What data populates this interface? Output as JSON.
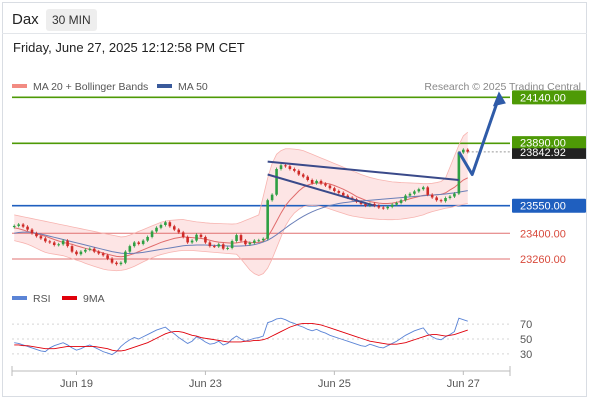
{
  "header": {
    "symbol": "Dax",
    "timeframe": "30 MIN",
    "timestamp": "Friday, June 27, 2025 12:12:58 PM CET"
  },
  "legend": [
    {
      "label": "MA 20 + Bollinger Bands",
      "color": "#f28b82"
    },
    {
      "label": "MA 50",
      "color": "#3a5a9b"
    }
  ],
  "credit": "Research © 2025 Trading Central",
  "rsi_legend": [
    {
      "label": "RSI",
      "color": "#5b84d6"
    },
    {
      "label": "9MA",
      "color": "#e0000b"
    }
  ],
  "colors": {
    "resistance": "#4e9a06",
    "pivot": "#1f5fbf",
    "support": "#e07070",
    "up_candle": "#2ea043",
    "down_candle": "#cf2a27",
    "band_fill": "#fde2e2",
    "channel": "#3a4a8a",
    "arrow": "#2f5ba8"
  },
  "chart_data": [
    {
      "type": "candlestick",
      "title": "Dax",
      "timeframe": "30 MIN",
      "x_ticks": [
        "Jun 19",
        "Jun 23",
        "Jun 25",
        "Jun 27"
      ],
      "ylim": [
        23200,
        24180
      ],
      "levels": [
        {
          "label": "24140.00",
          "value": 24140,
          "kind": "resistance"
        },
        {
          "label": "23890.00",
          "value": 23890,
          "kind": "resistance"
        },
        {
          "label": "23550.00",
          "value": 23550,
          "kind": "pivot"
        },
        {
          "label": "23400.00",
          "value": 23400,
          "kind": "support"
        },
        {
          "label": "23260.00",
          "value": 23260,
          "kind": "support"
        }
      ],
      "last_price_label": "23842.92",
      "closes": [
        23440,
        23448,
        23436,
        23420,
        23400,
        23384,
        23372,
        23356,
        23350,
        23336,
        23340,
        23360,
        23330,
        23300,
        23286,
        23300,
        23310,
        23316,
        23300,
        23290,
        23280,
        23262,
        23240,
        23232,
        23240,
        23300,
        23330,
        23350,
        23342,
        23360,
        23380,
        23410,
        23430,
        23445,
        23460,
        23438,
        23420,
        23405,
        23380,
        23350,
        23360,
        23392,
        23380,
        23350,
        23330,
        23328,
        23340,
        23316,
        23320,
        23358,
        23390,
        23360,
        23340,
        23348,
        23360,
        23362,
        23370,
        23580,
        23610,
        23750,
        23770,
        23765,
        23750,
        23740,
        23720,
        23708,
        23690,
        23672,
        23685,
        23670,
        23660,
        23645,
        23630,
        23620,
        23605,
        23594,
        23585,
        23572,
        23560,
        23550,
        23560,
        23550,
        23540,
        23536,
        23544,
        23556,
        23565,
        23580,
        23605,
        23615,
        23628,
        23640,
        23650,
        23610,
        23595,
        23580,
        23575,
        23592,
        23600,
        23616,
        23840,
        23855,
        23842.92
      ],
      "ma20": [
        23430,
        23425,
        23418,
        23410,
        23404,
        23396,
        23390,
        23384,
        23375,
        23366,
        23358,
        23350,
        23345,
        23340,
        23332,
        23325,
        23318,
        23312,
        23306,
        23300,
        23292,
        23286,
        23280,
        23274,
        23272,
        23275,
        23282,
        23290,
        23300,
        23310,
        23320,
        23330,
        23340,
        23350,
        23358,
        23365,
        23372,
        23376,
        23380,
        23378,
        23376,
        23374,
        23372,
        23368,
        23362,
        23356,
        23352,
        23350,
        23348,
        23346,
        23348,
        23352,
        23355,
        23350,
        23349,
        23350,
        23356,
        23380,
        23420,
        23465,
        23510,
        23550,
        23580,
        23605,
        23630,
        23650,
        23662,
        23670,
        23674,
        23674,
        23672,
        23668,
        23660,
        23650,
        23640,
        23628,
        23615,
        23600,
        23590,
        23580,
        23572,
        23568,
        23564,
        23562,
        23562,
        23564,
        23568,
        23574,
        23580,
        23588,
        23594,
        23600,
        23606,
        23608,
        23608,
        23610,
        23612,
        23620,
        23636,
        23650,
        23670,
        23690,
        23702
      ],
      "bb_upper": [
        23500,
        23495,
        23490,
        23485,
        23480,
        23475,
        23470,
        23465,
        23460,
        23455,
        23450,
        23445,
        23440,
        23435,
        23430,
        23425,
        23420,
        23415,
        23410,
        23405,
        23400,
        23395,
        23390,
        23385,
        23380,
        23382,
        23390,
        23400,
        23410,
        23420,
        23430,
        23440,
        23450,
        23460,
        23466,
        23470,
        23472,
        23474,
        23475,
        23470,
        23466,
        23462,
        23460,
        23457,
        23455,
        23454,
        23453,
        23452,
        23451,
        23450,
        23452,
        23460,
        23470,
        23480,
        23490,
        23500,
        23600,
        23700,
        23780,
        23830,
        23850,
        23860,
        23860,
        23858,
        23855,
        23850,
        23840,
        23830,
        23820,
        23810,
        23800,
        23790,
        23780,
        23770,
        23760,
        23750,
        23740,
        23730,
        23720,
        23712,
        23704,
        23698,
        23692,
        23688,
        23684,
        23680,
        23678,
        23676,
        23675,
        23674,
        23673,
        23672,
        23670,
        23670,
        23672,
        23676,
        23682,
        23700,
        23760,
        23820,
        23880,
        23930,
        23950
      ],
      "bb_lower": [
        23360,
        23354,
        23348,
        23340,
        23330,
        23318,
        23306,
        23296,
        23290,
        23286,
        23282,
        23278,
        23270,
        23262,
        23254,
        23246,
        23236,
        23228,
        23220,
        23212,
        23205,
        23200,
        23198,
        23196,
        23198,
        23202,
        23210,
        23220,
        23232,
        23244,
        23256,
        23266,
        23276,
        23284,
        23290,
        23296,
        23300,
        23304,
        23306,
        23306,
        23306,
        23304,
        23302,
        23300,
        23298,
        23296,
        23294,
        23292,
        23290,
        23288,
        23286,
        23260,
        23230,
        23200,
        23180,
        23170,
        23180,
        23210,
        23260,
        23320,
        23380,
        23440,
        23480,
        23510,
        23530,
        23545,
        23550,
        23552,
        23550,
        23546,
        23540,
        23532,
        23524,
        23516,
        23508,
        23500,
        23494,
        23490,
        23486,
        23482,
        23480,
        23478,
        23476,
        23475,
        23474,
        23474,
        23475,
        23477,
        23480,
        23484,
        23488,
        23494,
        23500,
        23510,
        23518,
        23524,
        23530,
        23536,
        23540,
        23546,
        23552,
        23558,
        23562
      ],
      "ma50": [
        23400,
        23404,
        23406,
        23406,
        23404,
        23400,
        23396,
        23390,
        23384,
        23378,
        23372,
        23366,
        23360,
        23354,
        23348,
        23342,
        23336,
        23330,
        23324,
        23318,
        23312,
        23306,
        23300,
        23296,
        23292,
        23290,
        23290,
        23291,
        23293,
        23296,
        23300,
        23304,
        23308,
        23312,
        23316,
        23320,
        23324,
        23328,
        23332,
        23334,
        23335,
        23336,
        23336,
        23336,
        23335,
        23334,
        23333,
        23332,
        23331,
        23330,
        23330,
        23331,
        23332,
        23334,
        23338,
        23344,
        23352,
        23362,
        23376,
        23392,
        23410,
        23428,
        23446,
        23462,
        23478,
        23492,
        23505,
        23517,
        23527,
        23536,
        23544,
        23551,
        23557,
        23562,
        23566,
        23569,
        23572,
        23574,
        23576,
        23578,
        23580,
        23582,
        23584,
        23586,
        23588,
        23590,
        23592,
        23594,
        23596,
        23598,
        23600,
        23602,
        23604,
        23606,
        23608,
        23610,
        23612,
        23614,
        23617,
        23620,
        23624,
        23628,
        23632
      ],
      "channel": {
        "upper": [
          [
            57,
            23790
          ],
          [
            100,
            23690
          ]
        ],
        "lower": [
          [
            57,
            23720
          ],
          [
            81,
            23550
          ]
        ]
      },
      "projection": [
        [
          100,
          23842.92
        ],
        [
          103,
          23720
        ],
        [
          109,
          24140
        ]
      ]
    },
    {
      "type": "line",
      "title": "RSI",
      "ylim": [
        15,
        85
      ],
      "y_ticks": [
        30,
        50,
        70
      ],
      "series": [
        {
          "name": "RSI",
          "values": [
            45,
            44,
            42,
            40,
            38,
            36,
            34,
            33,
            38,
            41,
            43,
            45,
            42,
            38,
            35,
            37,
            40,
            42,
            39,
            36,
            33,
            31,
            29,
            33,
            40,
            45,
            49,
            52,
            50,
            53,
            56,
            59,
            62,
            64,
            66,
            61,
            57,
            52,
            48,
            44,
            47,
            53,
            50,
            46,
            43,
            44,
            47,
            42,
            44,
            50,
            54,
            50,
            47,
            49,
            51,
            52,
            54,
            72,
            74,
            77,
            78,
            76,
            73,
            71,
            68,
            66,
            63,
            61,
            63,
            60,
            58,
            55,
            53,
            51,
            49,
            47,
            45,
            43,
            41,
            40,
            43,
            41,
            39,
            38,
            41,
            44,
            47,
            51,
            55,
            58,
            61,
            63,
            65,
            57,
            53,
            50,
            49,
            53,
            56,
            60,
            78,
            76,
            74
          ]
        },
        {
          "name": "9MA",
          "values": [
            42,
            42,
            41,
            41,
            40,
            39,
            38,
            37,
            37,
            37,
            38,
            39,
            40,
            40,
            40,
            40,
            40,
            40,
            40,
            39,
            38,
            37,
            35,
            34,
            34,
            35,
            37,
            39,
            41,
            43,
            45,
            48,
            51,
            54,
            57,
            59,
            60,
            60,
            59,
            57,
            55,
            54,
            52,
            51,
            50,
            49,
            48,
            47,
            46,
            46,
            46,
            46,
            47,
            47,
            48,
            48,
            49,
            51,
            54,
            57,
            60,
            63,
            66,
            68,
            70,
            71,
            71,
            71,
            70,
            69,
            67,
            65,
            63,
            61,
            59,
            57,
            55,
            53,
            51,
            49,
            47,
            46,
            45,
            44,
            43,
            43,
            43,
            44,
            45,
            47,
            49,
            51,
            53,
            55,
            56,
            56,
            55,
            54,
            55,
            56,
            58,
            60,
            62
          ]
        }
      ]
    }
  ]
}
